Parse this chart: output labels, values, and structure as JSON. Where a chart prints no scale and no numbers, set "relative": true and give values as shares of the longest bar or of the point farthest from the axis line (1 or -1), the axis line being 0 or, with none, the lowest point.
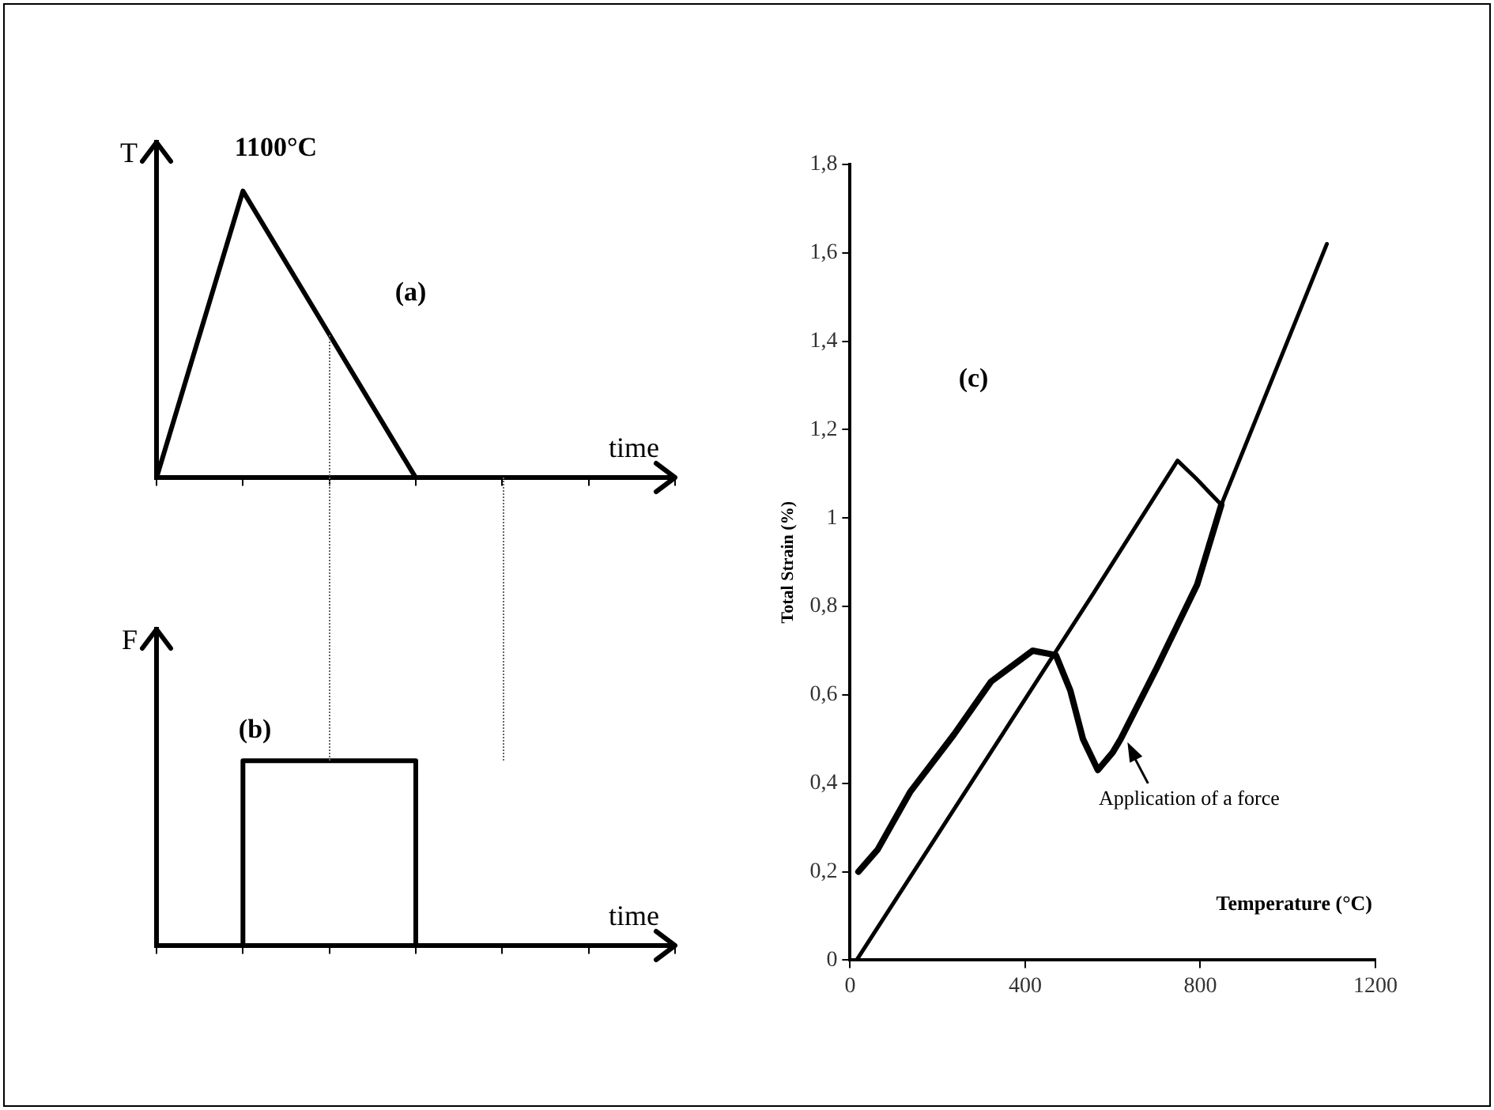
{
  "chart_data": [
    {
      "type": "line",
      "relative": true,
      "categories": [
        null,
        null,
        null,
        null,
        null,
        null,
        null
      ],
      "values": [
        0,
        1,
        0.5,
        0,
        null,
        null,
        null
      ],
      "color": "#000000",
      "xlabel": "time",
      "ylabel": "T",
      "annotations": [
        "1100°C",
        "(a)"
      ],
      "marker": "none"
    },
    {
      "type": "step",
      "relative": true,
      "categories": [
        null,
        null,
        null,
        null,
        null,
        null,
        null
      ],
      "values": [
        0,
        0,
        1,
        1,
        0,
        null,
        null
      ],
      "color": "#000000",
      "xlabel": "time",
      "ylabel": "F",
      "annotations": [
        "(b)"
      ],
      "marker": "none"
    },
    {
      "type": "line",
      "xlabel": "Temperature (°C)",
      "ylabel": "Total Strain (%)",
      "xlim": [
        0,
        1200
      ],
      "xticks": [
        0,
        400,
        800,
        1200
      ],
      "ylim": [
        0,
        1.8
      ],
      "yticks": [
        0,
        {
          "value": 0.2,
          "label": "0,2"
        },
        {
          "value": 0.4,
          "label": "0,4"
        },
        {
          "value": 0.6,
          "label": "0,6"
        },
        {
          "value": 0.8,
          "label": "0,8"
        },
        1,
        {
          "value": 1.2,
          "label": "1,2"
        },
        {
          "value": 1.4,
          "label": "1,4"
        },
        {
          "value": 1.6,
          "label": "1,6"
        },
        {
          "value": 1.8,
          "label": "1,8"
        }
      ],
      "marker": "none",
      "annotations": [
        "(c)",
        {
          "text": "Application of a force",
          "x": 630,
          "y": 0.5
        }
      ],
      "series": [
        {
          "color": "#000000",
          "x": [
            15,
            556,
            748,
            790,
            848,
            1089
          ],
          "values": [
            0,
            0.83,
            1.13,
            1.09,
            1.03,
            1.62
          ]
        },
        {
          "color": "#000000",
          "x": [
            19,
            63,
            137,
            237,
            322,
            417,
            470,
            503,
            532,
            566,
            600,
            618,
            700,
            793,
            848
          ],
          "values": [
            0.2,
            0.25,
            0.38,
            0.51,
            0.63,
            0.7,
            0.69,
            0.61,
            0.5,
            0.43,
            0.47,
            0.5,
            0.66,
            0.85,
            1.03
          ]
        }
      ]
    }
  ]
}
